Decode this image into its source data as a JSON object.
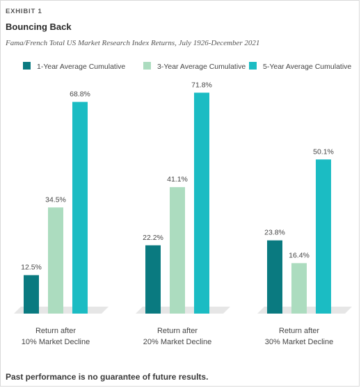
{
  "exhibit_label": "EXHIBIT 1",
  "footer_note": "Past performance is no guarantee of future results.",
  "chart_data": {
    "type": "bar",
    "title": "Bouncing Back",
    "subtitle": "Fama/French Total US Market Research Index Returns, July 1926-December 2021",
    "categories": [
      [
        "Return after",
        "10% Market Decline"
      ],
      [
        "Return after",
        "20% Market Decline"
      ],
      [
        "Return after",
        "30% Market Decline"
      ]
    ],
    "series": [
      {
        "name": "1-Year Average Cumulative",
        "color": "#0a7a80",
        "values": [
          12.5,
          22.2,
          23.8
        ],
        "labels": [
          "12.5%",
          "22.2%",
          "23.8%"
        ]
      },
      {
        "name": "3-Year Average Cumulative",
        "color": "#acdcbf",
        "values": [
          34.5,
          41.1,
          16.4
        ],
        "labels": [
          "34.5%",
          "41.1%",
          "16.4%"
        ]
      },
      {
        "name": "5-Year Average Cumulative",
        "color": "#1bbcc3",
        "values": [
          68.8,
          71.8,
          50.1
        ],
        "labels": [
          "68.8%",
          "71.8%",
          "50.1%"
        ]
      }
    ],
    "ylim": [
      0,
      80
    ],
    "grid": false,
    "legend_position": "top"
  }
}
